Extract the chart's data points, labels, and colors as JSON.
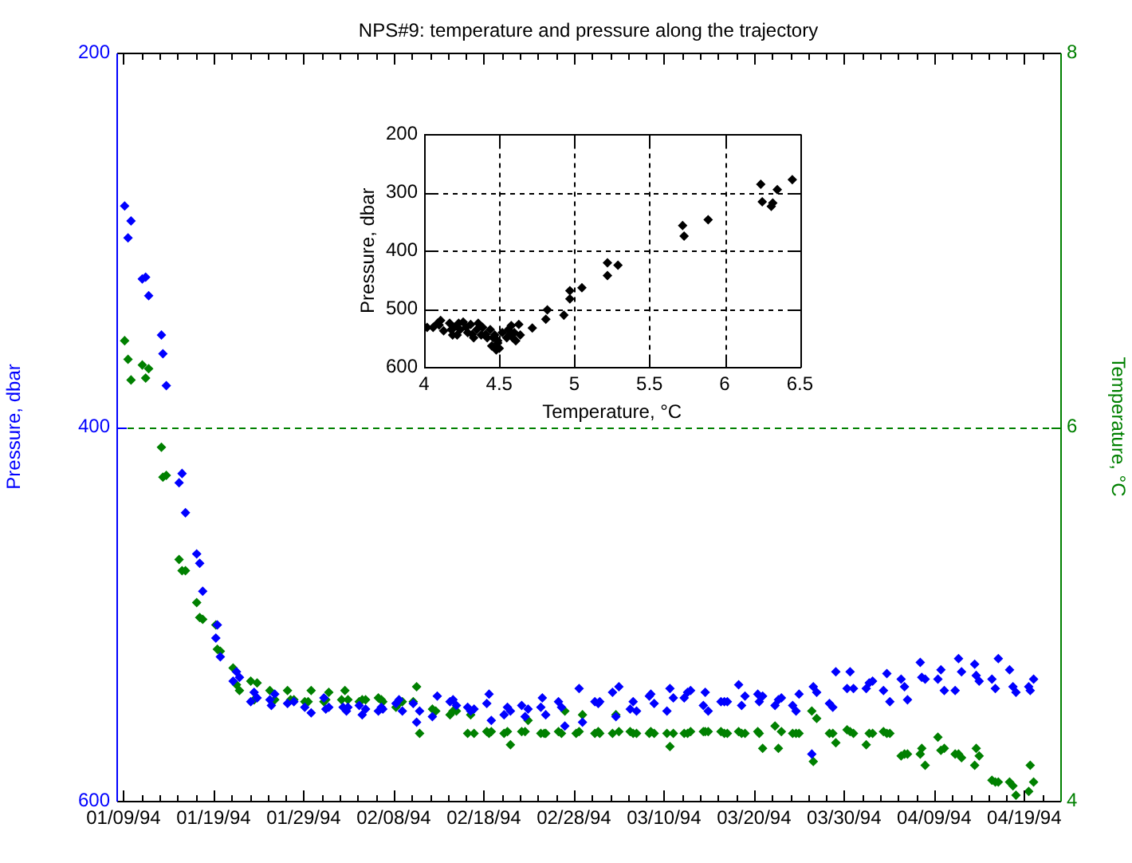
{
  "chart_data": [
    {
      "type": "scatter",
      "title": "NPS#9: temperature and pressure along the trajectory",
      "ylabel": "Pressure, dbar",
      "y2label": "Temperature, °C",
      "marker": "diamond",
      "xlim": [
        "1994-01-08T05:00",
        "1994-04-23"
      ],
      "xticks": [
        {
          "value": "1994-01-09",
          "label": "01/09/94"
        },
        {
          "value": "1994-01-11",
          "label": null
        },
        {
          "value": "1994-01-13",
          "label": null
        },
        {
          "value": "1994-01-15",
          "label": null
        },
        {
          "value": "1994-01-17",
          "label": null
        },
        {
          "value": "1994-01-19",
          "label": "01/19/94"
        },
        {
          "value": "1994-01-21",
          "label": null
        },
        {
          "value": "1994-01-23",
          "label": null
        },
        {
          "value": "1994-01-25",
          "label": null
        },
        {
          "value": "1994-01-27",
          "label": null
        },
        {
          "value": "1994-01-29",
          "label": "01/29/94"
        },
        {
          "value": "1994-01-31",
          "label": null
        },
        {
          "value": "1994-02-02",
          "label": null
        },
        {
          "value": "1994-02-04",
          "label": null
        },
        {
          "value": "1994-02-06",
          "label": null
        },
        {
          "value": "1994-02-08",
          "label": "02/08/94"
        },
        {
          "value": "1994-02-10",
          "label": null
        },
        {
          "value": "1994-02-12",
          "label": null
        },
        {
          "value": "1994-02-14",
          "label": null
        },
        {
          "value": "1994-02-16",
          "label": null
        },
        {
          "value": "1994-02-18",
          "label": "02/18/94"
        },
        {
          "value": "1994-02-20",
          "label": null
        },
        {
          "value": "1994-02-22",
          "label": null
        },
        {
          "value": "1994-02-24",
          "label": null
        },
        {
          "value": "1994-02-26",
          "label": null
        },
        {
          "value": "1994-02-28",
          "label": "02/28/94"
        },
        {
          "value": "1994-03-02",
          "label": null
        },
        {
          "value": "1994-03-04",
          "label": null
        },
        {
          "value": "1994-03-06",
          "label": null
        },
        {
          "value": "1994-03-08",
          "label": null
        },
        {
          "value": "1994-03-10",
          "label": "03/10/94"
        },
        {
          "value": "1994-03-12",
          "label": null
        },
        {
          "value": "1994-03-14",
          "label": null
        },
        {
          "value": "1994-03-16",
          "label": null
        },
        {
          "value": "1994-03-18",
          "label": null
        },
        {
          "value": "1994-03-20",
          "label": "03/20/94"
        },
        {
          "value": "1994-03-22",
          "label": null
        },
        {
          "value": "1994-03-24",
          "label": null
        },
        {
          "value": "1994-03-26",
          "label": null
        },
        {
          "value": "1994-03-28",
          "label": null
        },
        {
          "value": "1994-03-30",
          "label": "03/30/94"
        },
        {
          "value": "1994-04-01",
          "label": null
        },
        {
          "value": "1994-04-03",
          "label": null
        },
        {
          "value": "1994-04-05",
          "label": null
        },
        {
          "value": "1994-04-07",
          "label": null
        },
        {
          "value": "1994-04-09",
          "label": "04/09/94"
        },
        {
          "value": "1994-04-11",
          "label": null
        },
        {
          "value": "1994-04-13",
          "label": null
        },
        {
          "value": "1994-04-15",
          "label": null
        },
        {
          "value": "1994-04-17",
          "label": null
        },
        {
          "value": "1994-04-19",
          "label": "04/19/94"
        },
        {
          "value": "1994-04-21",
          "label": null
        }
      ],
      "ylim": [
        600,
        200
      ],
      "yticks": [
        200,
        400,
        600
      ],
      "y2lim": [
        4,
        8
      ],
      "y2ticks": [
        4,
        6,
        8
      ],
      "ref_lines": [
        {
          "axis": "y2",
          "value": 6,
          "color": "#008000",
          "line_style": "dashed"
        }
      ],
      "series": [
        {
          "color": "#0000ff",
          "axis": "y",
          "x": [
            "1994-01-09T03:00",
            "1994-01-09T12:00",
            "1994-01-09T20:00",
            "1994-01-11T02:00",
            "1994-01-11T11:00",
            "1994-01-11T19:00",
            "1994-01-13T05:00",
            "1994-01-13T09:00",
            "1994-01-13T18:00",
            "1994-01-15T04:00",
            "1994-01-15T12:00",
            "1994-01-15T21:00",
            "1994-01-17T03:00",
            "1994-01-17T11:00",
            "1994-01-17T19:00",
            "1994-01-19T06:00",
            "1994-01-19T10:00",
            "1994-01-19T18:00",
            "1994-01-21T04:00",
            "1994-01-21T13:00",
            "1994-01-21T21:00",
            "1994-01-23T03:00",
            "1994-01-23T12:00",
            "1994-01-23T20:00",
            "1994-01-25T06:00",
            "1994-01-25T10:00",
            "1994-01-25T19:00",
            "1994-01-27T05:00",
            "1994-01-27T22:00",
            "1994-01-29T03:00",
            "1994-01-29T20:00",
            "1994-01-31T06:00",
            "1994-01-31T11:00",
            "1994-01-31T19:00",
            "1994-02-02T09:00",
            "1994-02-02T18:00",
            "1994-02-02T22:00",
            "1994-02-04T04:00",
            "1994-02-04T12:00",
            "1994-02-04T21:00",
            "1994-02-06T07:00",
            "1994-02-06T15:00",
            "1994-02-06T19:00",
            "1994-02-08T06:00",
            "1994-02-08T14:00",
            "1994-02-08T23:00",
            "1994-02-10T04:00",
            "1994-02-10T13:00",
            "1994-02-10T21:00",
            "1994-02-12T07:00",
            "1994-02-12T20:00",
            "1994-02-14T06:00",
            "1994-02-14T14:00",
            "1994-02-14T23:00",
            "1994-02-16T05:00",
            "1994-02-16T13:00",
            "1994-02-16T22:00",
            "1994-02-18T08:00",
            "1994-02-18T14:00",
            "1994-02-18T20:00",
            "1994-02-20T06:00",
            "1994-02-20T15:00",
            "1994-02-20T23:00",
            "1994-02-22T05:00",
            "1994-02-22T14:00",
            "1994-02-22T22:00",
            "1994-02-24T08:00",
            "1994-02-24T12:00",
            "1994-02-24T21:00",
            "1994-02-26T07:00",
            "1994-02-26T15:00",
            "1994-02-27T00:00",
            "1994-02-28T14:00",
            "1994-02-28T23:00",
            "1994-03-02T08:00",
            "1994-03-02T17:00",
            "1994-03-02T21:00",
            "1994-03-04T07:00",
            "1994-03-04T16:00",
            "1994-03-05T00:00",
            "1994-03-06T06:00",
            "1994-03-06T14:00",
            "1994-03-06T23:00",
            "1994-03-08T09:00",
            "1994-03-08T13:00",
            "1994-03-08T22:00",
            "1994-03-10T08:00",
            "1994-03-10T16:00",
            "1994-03-11T01:00",
            "1994-03-12T06:00",
            "1994-03-12T15:00",
            "1994-03-12T23:00",
            "1994-03-14T09:00",
            "1994-03-14T14:00",
            "1994-03-14T22:00",
            "1994-03-16T08:00",
            "1994-03-16T17:00",
            "1994-03-17T01:00",
            "1994-03-18T07:00",
            "1994-03-18T15:00",
            "1994-03-19T00:00",
            "1994-03-20T10:00",
            "1994-03-20T14:00",
            "1994-03-20T23:00",
            "1994-03-22T08:00",
            "1994-03-22T17:00",
            "1994-03-23T01:00",
            "1994-03-24T07:00",
            "1994-03-24T16:00",
            "1994-03-25T00:00",
            "1994-03-26T10:00",
            "1994-03-26T14:00",
            "1994-03-26T23:00",
            "1994-03-28T09:00",
            "1994-03-28T18:00",
            "1994-03-29T02:00",
            "1994-03-30T08:00",
            "1994-03-30T16:00",
            "1994-03-31T01:00",
            "1994-04-01T11:00",
            "1994-04-01T19:00",
            "1994-04-02T04:00",
            "1994-04-03T09:00",
            "1994-04-03T18:00",
            "1994-04-04T02:00",
            "1994-04-05T08:00",
            "1994-04-05T17:00",
            "1994-04-06T01:00",
            "1994-04-07T11:00",
            "1994-04-07T15:00",
            "1994-04-08T00:00",
            "1994-04-09T10:00",
            "1994-04-09T18:00",
            "1994-04-10T03:00",
            "1994-04-11T08:00",
            "1994-04-11T17:00",
            "1994-04-12T01:00",
            "1994-04-13T12:00",
            "1994-04-13T16:00",
            "1994-04-14T00:00",
            "1994-04-15T10:00",
            "1994-04-15T19:00",
            "1994-04-16T03:00",
            "1994-04-17T09:00",
            "1994-04-17T18:00",
            "1994-04-18T02:00",
            "1994-04-19T12:00",
            "1994-04-19T16:00",
            "1994-04-20T01:00"
          ],
          "values": [
            282,
            299,
            290,
            321,
            320,
            330,
            351,
            361,
            378,
            430,
            425,
            446,
            468,
            473,
            488,
            513,
            506,
            523,
            536,
            531,
            534,
            547,
            542,
            545,
            546,
            549,
            543,
            548,
            547,
            550,
            553,
            545,
            551,
            550,
            550,
            552,
            550,
            549,
            554,
            551,
            552,
            550,
            551,
            548,
            546,
            552,
            548,
            558,
            552,
            555,
            544,
            547,
            546,
            549,
            550,
            552,
            551,
            548,
            543,
            557,
            554,
            550,
            552,
            549,
            555,
            551,
            550,
            545,
            554,
            547,
            550,
            560,
            540,
            558,
            547,
            548,
            547,
            542,
            555,
            539,
            551,
            547,
            552,
            544,
            543,
            548,
            552,
            540,
            545,
            545,
            542,
            541,
            549,
            542,
            552,
            547,
            547,
            547,
            538,
            549,
            544,
            543,
            547,
            544,
            549,
            546,
            545,
            549,
            552,
            543,
            575,
            539,
            542,
            548,
            550,
            531,
            540,
            531,
            540,
            540,
            537,
            536,
            541,
            532,
            547,
            535,
            539,
            546,
            526,
            534,
            535,
            535,
            530,
            541,
            541,
            524,
            531,
            527,
            533,
            536,
            535,
            540,
            524,
            530,
            539,
            542,
            539,
            541,
            535
          ]
        },
        {
          "color": "#008000",
          "axis": "y2",
          "x": [
            "1994-01-09T03:00",
            "1994-01-09T12:00",
            "1994-01-09T20:00",
            "1994-01-11T02:00",
            "1994-01-11T11:00",
            "1994-01-11T19:00",
            "1994-01-13T05:00",
            "1994-01-13T09:00",
            "1994-01-13T18:00",
            "1994-01-15T04:00",
            "1994-01-15T12:00",
            "1994-01-15T21:00",
            "1994-01-17T03:00",
            "1994-01-17T11:00",
            "1994-01-17T19:00",
            "1994-01-19T06:00",
            "1994-01-19T10:00",
            "1994-01-19T18:00",
            "1994-01-21T04:00",
            "1994-01-21T13:00",
            "1994-01-21T21:00",
            "1994-01-23T03:00",
            "1994-01-23T12:00",
            "1994-01-23T20:00",
            "1994-01-25T06:00",
            "1994-01-25T19:00",
            "1994-01-27T05:00",
            "1994-01-27T13:00",
            "1994-01-27T22:00",
            "1994-01-29T03:00",
            "1994-01-29T12:00",
            "1994-01-29T20:00",
            "1994-01-31T06:00",
            "1994-01-31T11:00",
            "1994-01-31T19:00",
            "1994-02-02T05:00",
            "1994-02-02T14:00",
            "1994-02-02T22:00",
            "1994-02-04T04:00",
            "1994-02-04T12:00",
            "1994-02-04T21:00",
            "1994-02-06T07:00",
            "1994-02-06T15:00",
            "1994-02-06T19:00",
            "1994-02-08T06:00",
            "1994-02-08T14:00",
            "1994-02-08T23:00",
            "1994-02-10T04:00",
            "1994-02-10T13:00",
            "1994-02-10T21:00",
            "1994-02-12T07:00",
            "1994-02-12T16:00",
            "1994-02-14T06:00",
            "1994-02-14T14:00",
            "1994-02-14T23:00",
            "1994-02-16T05:00",
            "1994-02-16T13:00",
            "1994-02-16T22:00",
            "1994-02-18T08:00",
            "1994-02-18T14:00",
            "1994-02-18T20:00",
            "1994-02-20T06:00",
            "1994-02-20T15:00",
            "1994-02-20T23:00",
            "1994-02-22T05:00",
            "1994-02-22T14:00",
            "1994-02-22T22:00",
            "1994-02-24T08:00",
            "1994-02-24T17:00",
            "1994-02-24T21:00",
            "1994-02-26T07:00",
            "1994-02-26T15:00",
            "1994-02-27T00:00",
            "1994-02-28T06:00",
            "1994-02-28T14:00",
            "1994-02-28T23:00",
            "1994-03-02T08:00",
            "1994-03-02T17:00",
            "1994-03-02T21:00",
            "1994-03-04T07:00",
            "1994-03-04T16:00",
            "1994-03-05T00:00",
            "1994-03-06T06:00",
            "1994-03-06T14:00",
            "1994-03-06T23:00",
            "1994-03-08T09:00",
            "1994-03-08T13:00",
            "1994-03-08T22:00",
            "1994-03-10T08:00",
            "1994-03-10T16:00",
            "1994-03-11T01:00",
            "1994-03-12T06:00",
            "1994-03-12T15:00",
            "1994-03-12T23:00",
            "1994-03-14T09:00",
            "1994-03-14T14:00",
            "1994-03-14T22:00",
            "1994-03-16T08:00",
            "1994-03-16T17:00",
            "1994-03-17T01:00",
            "1994-03-18T07:00",
            "1994-03-18T15:00",
            "1994-03-19T00:00",
            "1994-03-20T10:00",
            "1994-03-20T14:00",
            "1994-03-20T23:00",
            "1994-03-22T08:00",
            "1994-03-22T17:00",
            "1994-03-23T01:00",
            "1994-03-24T07:00",
            "1994-03-24T16:00",
            "1994-03-25T00:00",
            "1994-03-26T10:00",
            "1994-03-26T14:00",
            "1994-03-26T23:00",
            "1994-03-28T09:00",
            "1994-03-28T18:00",
            "1994-03-29T02:00",
            "1994-03-30T08:00",
            "1994-03-30T16:00",
            "1994-03-31T01:00",
            "1994-04-01T11:00",
            "1994-04-01T19:00",
            "1994-04-02T04:00",
            "1994-04-03T09:00",
            "1994-04-03T18:00",
            "1994-04-04T02:00",
            "1994-04-05T08:00",
            "1994-04-05T17:00",
            "1994-04-06T01:00",
            "1994-04-07T11:00",
            "1994-04-07T15:00",
            "1994-04-08T00:00",
            "1994-04-09T10:00",
            "1994-04-09T18:00",
            "1994-04-10T03:00",
            "1994-04-11T08:00",
            "1994-04-11T17:00",
            "1994-04-12T01:00",
            "1994-04-13T12:00",
            "1994-04-13T16:00",
            "1994-04-14T00:00",
            "1994-04-15T10:00",
            "1994-04-15T19:00",
            "1994-04-16T03:00",
            "1994-04-17T09:00",
            "1994-04-17T18:00",
            "1994-04-18T02:00",
            "1994-04-19T12:00",
            "1994-04-19T16:00",
            "1994-04-20T01:00"
          ],
          "values": [
            6.46,
            6.36,
            6.25,
            6.33,
            6.26,
            6.31,
            5.89,
            5.73,
            5.74,
            5.29,
            5.23,
            5.23,
            5.06,
            4.98,
            4.97,
            4.94,
            4.81,
            4.8,
            4.71,
            4.62,
            4.59,
            4.64,
            4.54,
            4.63,
            4.59,
            4.54,
            4.59,
            4.54,
            4.54,
            4.53,
            4.53,
            4.59,
            4.53,
            4.54,
            4.58,
            4.54,
            4.59,
            4.54,
            4.53,
            4.54,
            4.54,
            4.55,
            4.54,
            4.53,
            4.5,
            4.52,
            4.53,
            4.53,
            4.61,
            4.36,
            4.49,
            4.48,
            4.46,
            4.48,
            4.48,
            4.36,
            4.46,
            4.36,
            4.37,
            4.36,
            4.37,
            4.36,
            4.37,
            4.3,
            4.37,
            4.37,
            4.43,
            4.36,
            4.36,
            4.36,
            4.37,
            4.36,
            4.48,
            4.36,
            4.37,
            4.46,
            4.36,
            4.37,
            4.36,
            4.36,
            4.46,
            4.37,
            4.37,
            4.36,
            4.36,
            4.36,
            4.37,
            4.36,
            4.36,
            4.29,
            4.36,
            4.36,
            4.36,
            4.37,
            4.37,
            4.37,
            4.37,
            4.37,
            4.36,
            4.36,
            4.37,
            4.36,
            4.36,
            4.37,
            4.36,
            4.28,
            4.4,
            4.28,
            4.37,
            4.36,
            4.36,
            4.36,
            4.48,
            4.21,
            4.44,
            4.36,
            4.36,
            4.31,
            4.38,
            4.37,
            4.36,
            4.3,
            4.36,
            4.36,
            4.37,
            4.36,
            4.36,
            4.24,
            4.25,
            4.25,
            4.25,
            4.28,
            4.19,
            4.34,
            4.27,
            4.28,
            4.25,
            4.25,
            4.23,
            4.19,
            4.28,
            4.24,
            4.11,
            4.1,
            4.1,
            4.1,
            4.08,
            4.03,
            4.05,
            4.19,
            4.1
          ]
        }
      ]
    },
    {
      "type": "scatter",
      "xlabel": "Temperature, °C",
      "ylabel": "Pressure, dbar",
      "marker": "diamond",
      "grid": true,
      "color": "#000000",
      "xlim": [
        4,
        6.5
      ],
      "xticks": [
        4,
        4.5,
        5,
        5.5,
        6,
        6.5
      ],
      "ylim": [
        600,
        200
      ],
      "yticks": [
        200,
        300,
        400,
        500,
        600
      ],
      "x": [
        4.02,
        4.06,
        4.09,
        4.1,
        4.11,
        4.13,
        4.17,
        4.18,
        4.19,
        4.2,
        4.22,
        4.23,
        4.24,
        4.26,
        4.28,
        4.29,
        4.31,
        4.32,
        4.33,
        4.35,
        4.36,
        4.38,
        4.39,
        4.41,
        4.42,
        4.44,
        4.45,
        4.46,
        4.47,
        4.48,
        4.49,
        4.49,
        4.5,
        4.52,
        4.55,
        4.56,
        4.57,
        4.58,
        4.59,
        4.6,
        4.61,
        4.63,
        4.64,
        4.72,
        4.81,
        4.82,
        4.93,
        4.97,
        4.97,
        5.05,
        5.22,
        5.22,
        5.29,
        5.72,
        5.73,
        5.89,
        6.24,
        6.25,
        6.31,
        6.32,
        6.35,
        6.45
      ],
      "values": [
        532,
        532,
        525,
        528,
        520,
        538,
        525,
        536,
        545,
        532,
        545,
        525,
        536,
        523,
        532,
        541,
        527,
        544,
        550,
        536,
        525,
        545,
        532,
        544,
        550,
        536,
        564,
        550,
        545,
        571,
        555,
        559,
        568,
        541,
        550,
        536,
        544,
        529,
        550,
        541,
        555,
        527,
        545,
        533,
        518,
        502,
        511,
        469,
        483,
        464,
        421,
        443,
        425,
        357,
        375,
        347,
        286,
        316,
        324,
        318,
        295,
        278
      ]
    }
  ]
}
